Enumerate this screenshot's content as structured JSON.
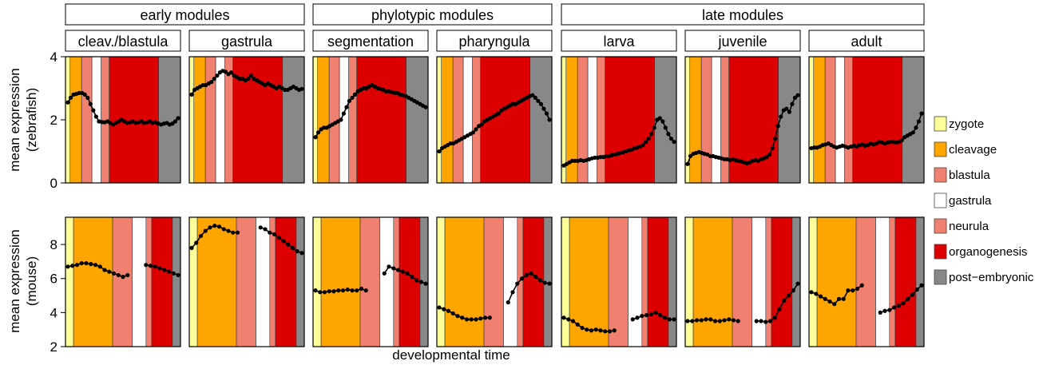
{
  "stages": [
    {
      "name": "zygote",
      "color": "#FFFF99"
    },
    {
      "name": "cleavage",
      "color": "#FFA500"
    },
    {
      "name": "blastula",
      "color": "#F08070"
    },
    {
      "name": "gastrula",
      "color": "#FFFFFF"
    },
    {
      "name": "neurula",
      "color": "#F08070"
    },
    {
      "name": "organogenesis",
      "color": "#DD0000"
    },
    {
      "name": "post−embryonic",
      "color": "#888888"
    }
  ],
  "groups": [
    "early modules",
    "phylotypic modules",
    "late modules"
  ],
  "modules": [
    "cleav./blastula",
    "gastrula",
    "segmentation",
    "pharyngula",
    "larva",
    "juvenile",
    "adult"
  ],
  "xlabel": "developmental time",
  "rows": [
    {
      "ylabel_line1": "mean expression",
      "ylabel_line2": "(zebrafish)",
      "ticks": [
        "0",
        "2",
        "4"
      ]
    },
    {
      "ylabel_line1": "mean expression",
      "ylabel_line2": "(mouse)",
      "ticks": [
        "2",
        "4",
        "6",
        "8"
      ]
    }
  ],
  "chart_data": {
    "type": "line",
    "title": "",
    "xlabel": "developmental time",
    "ylabel": "mean expression",
    "facets": {
      "rows": [
        "zebrafish",
        "mouse"
      ],
      "columns": [
        "cleav./blastula",
        "gastrula",
        "segmentation",
        "pharyngula",
        "larva",
        "juvenile",
        "adult"
      ],
      "column_groups": [
        {
          "name": "early modules",
          "columns": [
            "cleav./blastula",
            "gastrula"
          ]
        },
        {
          "name": "phylotypic modules",
          "columns": [
            "segmentation",
            "pharyngula"
          ]
        },
        {
          "name": "late modules",
          "columns": [
            "larva",
            "juvenile",
            "adult"
          ]
        }
      ]
    },
    "stage_legend": [
      "zygote",
      "cleavage",
      "blastula",
      "gastrula",
      "neurula",
      "organogenesis",
      "post−embryonic"
    ],
    "stage_spans": {
      "zebrafish": [
        [
          0,
          0.04
        ],
        [
          0.04,
          0.14
        ],
        [
          0.14,
          0.23
        ],
        [
          0.23,
          0.31
        ],
        [
          0.31,
          0.38
        ],
        [
          0.38,
          0.81
        ],
        [
          0.81,
          1.0
        ]
      ],
      "mouse": [
        [
          0,
          0.07
        ],
        [
          0.07,
          0.41
        ],
        [
          0.41,
          0.58
        ],
        [
          0.58,
          0.7
        ],
        [
          0.7,
          0.75
        ],
        [
          0.75,
          0.93
        ],
        [
          0.93,
          1.0
        ]
      ]
    },
    "ylim": {
      "zebrafish": [
        0,
        4
      ],
      "mouse": [
        2,
        9.6
      ]
    },
    "series": {
      "zebrafish": [
        {
          "module": "cleav./blastula",
          "values": [
            2.55,
            2.7,
            2.8,
            2.82,
            2.85,
            2.85,
            2.8,
            2.7,
            2.5,
            2.3,
            2.1,
            1.95,
            1.93,
            1.92,
            1.95,
            1.9,
            1.85,
            1.9,
            1.95,
            2.0,
            1.95,
            1.9,
            1.92,
            1.95,
            1.9,
            1.92,
            1.95,
            1.9,
            1.92,
            1.95,
            1.9,
            1.92,
            1.88,
            1.85,
            1.88,
            1.9,
            1.85,
            1.88,
            1.95,
            2.05
          ]
        },
        {
          "module": "gastrula",
          "values": [
            2.8,
            2.95,
            3.0,
            3.05,
            3.1,
            3.1,
            3.15,
            3.2,
            3.3,
            3.4,
            3.5,
            3.55,
            3.52,
            3.45,
            3.5,
            3.4,
            3.35,
            3.3,
            3.3,
            3.25,
            3.3,
            3.4,
            3.3,
            3.25,
            3.2,
            3.15,
            3.1,
            3.15,
            3.1,
            3.05,
            3.0,
            3.05,
            3.0,
            2.95,
            2.95,
            3.0,
            3.05,
            3.0,
            2.95,
            2.98
          ]
        },
        {
          "module": "segmentation",
          "values": [
            1.45,
            1.6,
            1.7,
            1.75,
            1.75,
            1.8,
            1.85,
            1.9,
            1.95,
            2.0,
            2.2,
            2.4,
            2.6,
            2.7,
            2.8,
            2.9,
            2.95,
            3.0,
            3.0,
            3.05,
            3.1,
            3.05,
            3.0,
            2.98,
            2.95,
            2.9,
            2.9,
            2.88,
            2.85,
            2.85,
            2.8,
            2.78,
            2.75,
            2.7,
            2.65,
            2.6,
            2.55,
            2.5,
            2.45,
            2.4
          ]
        },
        {
          "module": "pharyngula",
          "values": [
            1.0,
            1.1,
            1.15,
            1.2,
            1.25,
            1.25,
            1.3,
            1.35,
            1.4,
            1.45,
            1.5,
            1.55,
            1.6,
            1.7,
            1.8,
            1.85,
            1.95,
            2.0,
            2.05,
            2.1,
            2.15,
            2.2,
            2.3,
            2.35,
            2.4,
            2.45,
            2.5,
            2.5,
            2.55,
            2.6,
            2.65,
            2.7,
            2.75,
            2.78,
            2.7,
            2.6,
            2.5,
            2.35,
            2.2,
            2.0
          ]
        },
        {
          "module": "larva",
          "values": [
            0.55,
            0.6,
            0.65,
            0.7,
            0.7,
            0.7,
            0.72,
            0.7,
            0.72,
            0.75,
            0.78,
            0.8,
            0.8,
            0.82,
            0.82,
            0.85,
            0.85,
            0.88,
            0.9,
            0.92,
            0.95,
            0.97,
            1.0,
            1.03,
            1.05,
            1.1,
            1.12,
            1.15,
            1.2,
            1.3,
            1.4,
            1.55,
            1.75,
            2.0,
            2.05,
            1.95,
            1.75,
            1.55,
            1.4,
            1.3
          ]
        },
        {
          "module": "juvenile",
          "values": [
            0.6,
            0.85,
            0.92,
            0.95,
            0.98,
            0.95,
            0.92,
            0.9,
            0.85,
            0.85,
            0.82,
            0.8,
            0.78,
            0.75,
            0.75,
            0.72,
            0.75,
            0.72,
            0.7,
            0.68,
            0.65,
            0.62,
            0.65,
            0.7,
            0.72,
            0.7,
            0.75,
            0.78,
            0.82,
            0.9,
            1.1,
            1.4,
            1.8,
            2.1,
            2.3,
            2.35,
            2.25,
            2.5,
            2.7,
            2.78
          ]
        },
        {
          "module": "adult",
          "values": [
            1.1,
            1.12,
            1.12,
            1.15,
            1.2,
            1.22,
            1.25,
            1.2,
            1.15,
            1.12,
            1.15,
            1.18,
            1.15,
            1.12,
            1.15,
            1.18,
            1.15,
            1.2,
            1.22,
            1.18,
            1.2,
            1.25,
            1.22,
            1.25,
            1.3,
            1.28,
            1.25,
            1.28,
            1.3,
            1.3,
            1.28,
            1.3,
            1.35,
            1.45,
            1.5,
            1.55,
            1.6,
            1.75,
            1.95,
            2.2
          ]
        }
      ],
      "mouse": [
        {
          "module": "cleav./blastula",
          "values": [
            6.7,
            6.75,
            6.8,
            6.9,
            6.9,
            6.85,
            6.8,
            6.7,
            6.5,
            6.4,
            6.3,
            6.2,
            6.1,
            6.2,
            null,
            null,
            null,
            6.8,
            6.75,
            6.7,
            6.6,
            6.5,
            6.4,
            6.3,
            6.2
          ]
        },
        {
          "module": "gastrula",
          "values": [
            7.8,
            8.1,
            8.5,
            8.8,
            9.0,
            9.1,
            9.05,
            8.9,
            8.8,
            8.7,
            8.7,
            null,
            null,
            null,
            null,
            9.0,
            8.9,
            8.7,
            8.6,
            8.4,
            8.2,
            8.0,
            7.8,
            7.6,
            7.5
          ]
        },
        {
          "module": "segmentation",
          "values": [
            5.3,
            5.2,
            5.2,
            5.25,
            5.25,
            5.3,
            5.3,
            5.35,
            5.3,
            5.3,
            5.4,
            5.3,
            null,
            null,
            null,
            6.3,
            6.7,
            6.6,
            6.5,
            6.4,
            6.3,
            6.1,
            5.9,
            5.8,
            5.7
          ]
        },
        {
          "module": "pharyngula",
          "values": [
            4.3,
            4.2,
            4.1,
            3.95,
            3.8,
            3.7,
            3.6,
            3.6,
            3.6,
            3.65,
            3.7,
            3.7,
            null,
            null,
            null,
            4.6,
            5.2,
            5.7,
            6.0,
            6.2,
            6.3,
            6.1,
            5.9,
            5.75,
            5.7
          ]
        },
        {
          "module": "larva",
          "values": [
            3.7,
            3.6,
            3.5,
            3.3,
            3.1,
            3.0,
            2.95,
            3.0,
            2.95,
            2.9,
            2.9,
            2.95,
            null,
            null,
            null,
            3.6,
            3.7,
            3.8,
            3.85,
            3.9,
            4.0,
            3.85,
            3.7,
            3.6,
            3.6
          ]
        },
        {
          "module": "juvenile",
          "values": [
            3.5,
            3.5,
            3.55,
            3.55,
            3.6,
            3.6,
            3.5,
            3.5,
            3.55,
            3.6,
            3.55,
            3.5,
            null,
            null,
            null,
            3.5,
            3.5,
            3.45,
            3.5,
            3.7,
            4.2,
            4.7,
            5.0,
            5.3,
            5.7
          ]
        },
        {
          "module": "adult",
          "values": [
            5.2,
            5.1,
            4.95,
            4.8,
            4.65,
            4.5,
            4.8,
            4.8,
            5.3,
            5.3,
            5.4,
            5.6,
            null,
            null,
            null,
            4.0,
            4.1,
            4.15,
            4.3,
            4.4,
            4.55,
            4.8,
            5.05,
            5.35,
            5.6
          ]
        }
      ]
    }
  }
}
